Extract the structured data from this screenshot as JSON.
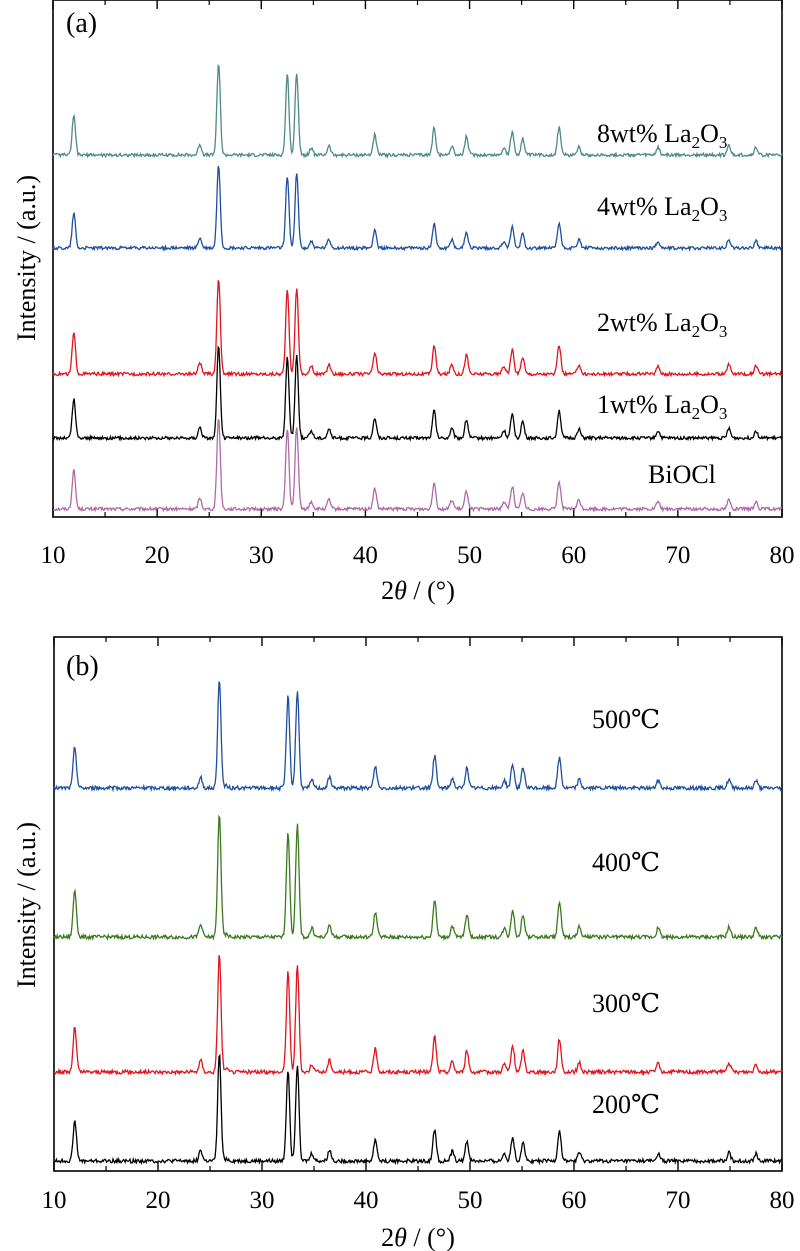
{
  "chart_data": [
    {
      "panel": "(a)",
      "type": "line",
      "xlabel_pre": "2",
      "xlabel_theta": "θ",
      "xlabel_post": " / (°)",
      "ylabel": "Intensity / (a.u.)",
      "xlim": [
        10,
        80
      ],
      "x_ticks": [
        "10",
        "20",
        "30",
        "40",
        "50",
        "60",
        "70",
        "80"
      ],
      "y_ticks": "none",
      "grid": false,
      "series": [
        {
          "name": "BiOCl",
          "label_main": "BiOCl",
          "label_sub": "",
          "label_tail": "",
          "color": "#b06aa8",
          "offset": 0,
          "scale": 1.0
        },
        {
          "name": "1wt% La2O3",
          "label_main": "1wt% La",
          "label_sub": "2",
          "label_tail": "O",
          "label_sub2": "3",
          "color": "#000000",
          "offset": 1,
          "scale": 1.0
        },
        {
          "name": "2wt% La2O3",
          "label_main": "2wt% La",
          "label_sub": "2",
          "label_tail": "O",
          "label_sub2": "3",
          "color": "#e2141c",
          "offset": 2,
          "scale": 1.05
        },
        {
          "name": "4wt% La2O3",
          "label_main": "4wt% La",
          "label_sub": "2",
          "label_tail": "O",
          "label_sub2": "3",
          "color": "#1f4fa0",
          "offset": 3,
          "scale": 0.9
        },
        {
          "name": "8wt% La2O3",
          "label_main": "8wt% La",
          "label_sub": "2",
          "label_tail": "O",
          "label_sub2": "3",
          "color": "#4e8a86",
          "offset": 4,
          "scale": 1.0
        }
      ],
      "peaks": [
        {
          "x": 12.0,
          "h": 0.42
        },
        {
          "x": 24.1,
          "h": 0.12
        },
        {
          "x": 25.9,
          "h": 1.0
        },
        {
          "x": 32.5,
          "h": 0.88
        },
        {
          "x": 33.4,
          "h": 0.9
        },
        {
          "x": 34.8,
          "h": 0.08
        },
        {
          "x": 36.5,
          "h": 0.1
        },
        {
          "x": 40.9,
          "h": 0.22
        },
        {
          "x": 46.6,
          "h": 0.3
        },
        {
          "x": 48.3,
          "h": 0.1
        },
        {
          "x": 49.7,
          "h": 0.2
        },
        {
          "x": 53.3,
          "h": 0.08
        },
        {
          "x": 54.1,
          "h": 0.25
        },
        {
          "x": 55.1,
          "h": 0.18
        },
        {
          "x": 58.6,
          "h": 0.3
        },
        {
          "x": 60.5,
          "h": 0.1
        },
        {
          "x": 68.1,
          "h": 0.08
        },
        {
          "x": 74.9,
          "h": 0.1
        },
        {
          "x": 77.5,
          "h": 0.08
        }
      ]
    },
    {
      "panel": "(b)",
      "type": "line",
      "xlabel_pre": "2",
      "xlabel_theta": "θ",
      "xlabel_post": " / (°)",
      "ylabel": "Intensity / (a.u.)",
      "xlim": [
        10,
        80
      ],
      "x_ticks": [
        "10",
        "20",
        "30",
        "40",
        "50",
        "60",
        "70",
        "80"
      ],
      "y_ticks": "none",
      "grid": false,
      "series": [
        {
          "name": "200℃",
          "label_main": "200℃",
          "label_sub": "",
          "label_tail": "",
          "color": "#000000",
          "offset": 0,
          "scale": 1.0
        },
        {
          "name": "300℃",
          "label_main": "300℃",
          "label_sub": "",
          "label_tail": "",
          "color": "#e2141c",
          "offset": 1,
          "scale": 1.1
        },
        {
          "name": "400℃",
          "label_main": "400℃",
          "label_sub": "",
          "label_tail": "",
          "color": "#3b7a1c",
          "offset": 2,
          "scale": 1.15
        },
        {
          "name": "500℃",
          "label_main": "500℃",
          "label_sub": "",
          "label_tail": "",
          "color": "#1f4fa0",
          "offset": 3,
          "scale": 1.0
        }
      ],
      "peaks": [
        {
          "x": 12.0,
          "h": 0.38
        },
        {
          "x": 24.1,
          "h": 0.1
        },
        {
          "x": 25.9,
          "h": 1.0
        },
        {
          "x": 26.6,
          "h": 0.02
        },
        {
          "x": 32.5,
          "h": 0.85
        },
        {
          "x": 33.4,
          "h": 0.9
        },
        {
          "x": 34.8,
          "h": 0.07
        },
        {
          "x": 36.5,
          "h": 0.1
        },
        {
          "x": 40.9,
          "h": 0.2
        },
        {
          "x": 46.6,
          "h": 0.3
        },
        {
          "x": 48.3,
          "h": 0.09
        },
        {
          "x": 49.7,
          "h": 0.18
        },
        {
          "x": 53.3,
          "h": 0.07
        },
        {
          "x": 54.1,
          "h": 0.22
        },
        {
          "x": 55.1,
          "h": 0.18
        },
        {
          "x": 58.6,
          "h": 0.28
        },
        {
          "x": 60.5,
          "h": 0.08
        },
        {
          "x": 68.1,
          "h": 0.07
        },
        {
          "x": 74.9,
          "h": 0.08
        },
        {
          "x": 77.5,
          "h": 0.07
        }
      ]
    }
  ]
}
